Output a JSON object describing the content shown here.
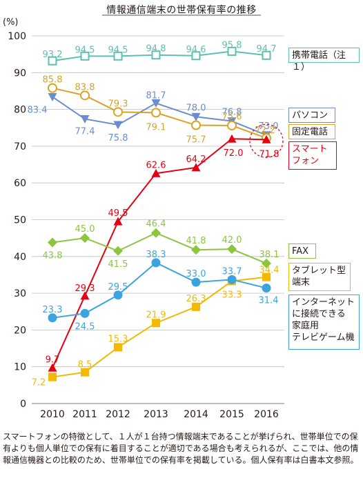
{
  "title": "情報通信端末の世帯保有率の推移",
  "note": "スマートフォンの特徴として、１人が１台持つ情報端末であることが挙げられ、世帯単位での保有よりも個人単位での保有に着目することが適切である場合も考えられるが、ここでは、他の情報通信機器との比較のため、世帯単位での保有率を掲載している。個人保有率は白書本文参照。",
  "chart_data": {
    "type": "line",
    "title": "情報通信端末の世帯保有率の推移",
    "ylabel": "(%)",
    "xlabel": "",
    "ylim": [
      0,
      100
    ],
    "yticks": [
      "0",
      "10",
      "20",
      "30",
      "40",
      "50",
      "60",
      "70",
      "80",
      "90",
      "100"
    ],
    "x": [
      "2010",
      "2011",
      "2012",
      "2013",
      "2014",
      "2015",
      "2016"
    ],
    "grid": "horizontal",
    "legend_position": "right",
    "series": [
      {
        "name": "携帯電話（注１）",
        "color": "#5bbfb1",
        "marker": "square-open",
        "values": [
          93.2,
          94.5,
          94.5,
          94.8,
          94.6,
          95.8,
          94.7
        ],
        "labels": [
          "93.2",
          "94.5",
          "94.5",
          "94.8",
          "94.6",
          "95.8",
          "94.7"
        ]
      },
      {
        "name": "パソコン",
        "color": "#6b8ccf",
        "marker": "triangle-down",
        "values": [
          83.4,
          77.4,
          75.8,
          81.7,
          78.0,
          76.8,
          73.0
        ],
        "labels": [
          "83.4",
          "77.4",
          "75.8",
          "81.7",
          "78.0",
          "76.8",
          "73.0"
        ]
      },
      {
        "name": "固定電話",
        "color": "#d9a324",
        "marker": "circle-open",
        "values": [
          85.8,
          83.8,
          79.3,
          79.1,
          75.7,
          75.6,
          72.2
        ],
        "labels": [
          "85.8",
          "83.8",
          "79.3",
          "79.1",
          "75.7",
          "75.6",
          "72.2"
        ]
      },
      {
        "name": "スマートフォン",
        "color": "#e50012",
        "marker": "triangle-up",
        "values": [
          9.7,
          29.3,
          49.5,
          62.6,
          64.2,
          72.0,
          71.8
        ],
        "labels": [
          "9.7",
          "29.3",
          "49.5",
          "62.6",
          "64.2",
          "72.0",
          "71.8"
        ]
      },
      {
        "name": "FAX",
        "color": "#8cc63f",
        "marker": "diamond",
        "values": [
          43.8,
          45.0,
          41.5,
          46.4,
          41.8,
          42.0,
          38.1
        ],
        "labels": [
          "43.8",
          "45.0",
          "41.5",
          "46.4",
          "41.8",
          "42.0",
          "38.1"
        ]
      },
      {
        "name": "タブレット型端末",
        "color": "#f5b800",
        "marker": "square",
        "values": [
          7.2,
          8.5,
          15.3,
          21.9,
          26.3,
          33.3,
          34.4
        ],
        "labels": [
          "7.2",
          "8.5",
          "15.3",
          "21.9",
          "26.3",
          "33.3",
          "34.4"
        ]
      },
      {
        "name": "インターネットに接続できる家庭用テレビゲーム機",
        "color": "#3ca4dd",
        "marker": "circle",
        "values": [
          23.3,
          24.5,
          29.5,
          38.3,
          33.0,
          33.7,
          31.4
        ],
        "labels": [
          "23.3",
          "24.5",
          "29.5",
          "38.3",
          "33.0",
          "33.7",
          "31.4"
        ]
      }
    ],
    "legend_entries": [
      {
        "text": "携帯電話（注１）",
        "color": "#5bbfb1",
        "fill": "#ffffff",
        "text_color": "#231815"
      },
      {
        "text": "パソコン",
        "color": "#6b8ccf",
        "fill": "#ffffff",
        "text_color": "#231815"
      },
      {
        "text": "固定電話",
        "color": "#d9a324",
        "fill": "#ffffff",
        "text_color": "#231815"
      },
      {
        "text": "スマート\nフォン",
        "color": "#e50012",
        "fill": "#ffffff",
        "text_color": "#e50012"
      },
      {
        "text": "FAX",
        "color": "#8cc63f",
        "fill": "#ffffff",
        "text_color": "#231815"
      },
      {
        "text": "タブレット型\n端末",
        "color": "#f5b800",
        "fill": "#ffffff",
        "text_color": "#231815"
      },
      {
        "text": "インターネット\nに接続できる\n家庭用\nテレビゲーム機",
        "color": "#3ca4dd",
        "fill": "#ffffff",
        "text_color": "#231815"
      }
    ],
    "annotations": [
      {
        "type": "dashed-circle",
        "target_series": "スマートフォン",
        "target_x": "2016",
        "color": "#e50012"
      }
    ]
  }
}
